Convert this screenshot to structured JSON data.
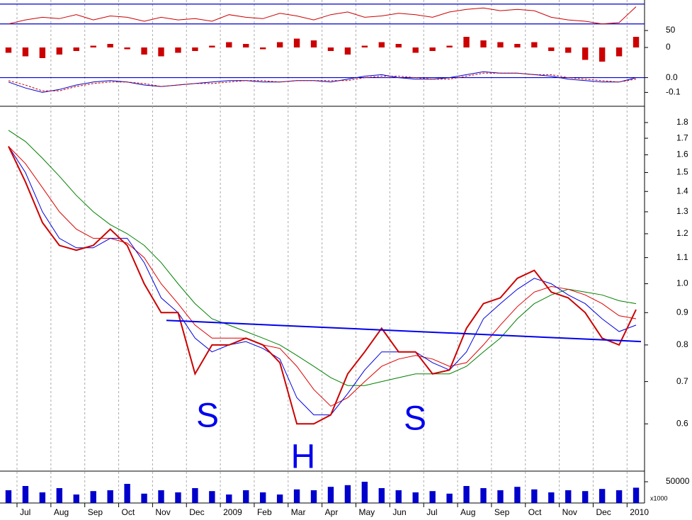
{
  "time_axis": {
    "labels": [
      "Jul",
      "Aug",
      "Sep",
      "Oct",
      "Nov",
      "Dec",
      "2009",
      "Feb",
      "Mar",
      "Apr",
      "May",
      "Jun",
      "Jul",
      "Aug",
      "Sep",
      "Oct",
      "Nov",
      "Dec",
      "2010"
    ]
  },
  "chart_data": [
    {
      "type": "line",
      "ylim": [
        42,
        72
      ],
      "yticks": [
        50
      ],
      "hlines": [
        70,
        55
      ],
      "series": [
        {
          "color": "#cc0000",
          "values": [
            55,
            58,
            60,
            59,
            62,
            58,
            61,
            60,
            57,
            60,
            58,
            59,
            57,
            62,
            60,
            59,
            63,
            61,
            58,
            62,
            64,
            60,
            61,
            63,
            62,
            60,
            64,
            66,
            67,
            65,
            66,
            65,
            60,
            58,
            57,
            55,
            56,
            68
          ]
        }
      ]
    },
    {
      "type": "bar",
      "ylim": [
        -1,
        1
      ],
      "yticks": [
        0
      ],
      "color": "#cc0000",
      "values": [
        -0.3,
        -0.5,
        -0.6,
        -0.4,
        -0.2,
        0.1,
        0.2,
        -0.1,
        -0.4,
        -0.5,
        -0.3,
        -0.2,
        0.1,
        0.3,
        0.2,
        -0.1,
        0.3,
        0.5,
        0.4,
        -0.2,
        -0.4,
        0.1,
        0.3,
        0.2,
        -0.3,
        -0.2,
        0.1,
        0.6,
        0.4,
        0.3,
        0.2,
        0.3,
        -0.2,
        -0.3,
        -0.7,
        -0.8,
        -0.5,
        0.6
      ]
    },
    {
      "type": "line",
      "ylim": [
        -0.17,
        0.07
      ],
      "yticks": [
        {
          "value": 0,
          "label": "0.0"
        },
        -0.1
      ],
      "hlines": [
        0
      ],
      "series": [
        {
          "color": "#0000cc",
          "values": [
            -0.03,
            -0.07,
            -0.1,
            -0.08,
            -0.05,
            -0.03,
            -0.02,
            -0.03,
            -0.05,
            -0.06,
            -0.05,
            -0.04,
            -0.03,
            -0.02,
            -0.02,
            -0.03,
            -0.03,
            -0.02,
            -0.02,
            -0.03,
            -0.01,
            0.01,
            0.02,
            0.0,
            -0.01,
            -0.01,
            0.0,
            0.02,
            0.04,
            0.03,
            0.03,
            0.02,
            0.01,
            -0.01,
            -0.02,
            -0.03,
            -0.03,
            0.0
          ]
        },
        {
          "color": "#cc0000",
          "dash": true,
          "values": [
            -0.02,
            -0.05,
            -0.09,
            -0.09,
            -0.06,
            -0.04,
            -0.03,
            -0.03,
            -0.04,
            -0.06,
            -0.05,
            -0.04,
            -0.04,
            -0.03,
            -0.02,
            -0.02,
            -0.03,
            -0.02,
            -0.02,
            -0.02,
            -0.02,
            0.0,
            0.01,
            0.01,
            0.0,
            -0.01,
            -0.01,
            0.01,
            0.03,
            0.03,
            0.03,
            0.02,
            0.02,
            0.0,
            -0.01,
            -0.02,
            -0.03,
            -0.01
          ]
        }
      ]
    },
    {
      "type": "line",
      "log": true,
      "ylim": [
        0.505,
        1.91
      ],
      "yticks": [
        0.6,
        0.7,
        0.8,
        0.9,
        {
          "value": 1,
          "label": "1.0"
        },
        1.1,
        1.2,
        1.3,
        1.4,
        1.5,
        1.6,
        1.7,
        1.8
      ],
      "series": [
        {
          "color": "#008000",
          "values": [
            1.75,
            1.68,
            1.58,
            1.48,
            1.38,
            1.3,
            1.24,
            1.2,
            1.15,
            1.08,
            1.0,
            0.93,
            0.88,
            0.86,
            0.84,
            0.82,
            0.8,
            0.77,
            0.74,
            0.71,
            0.69,
            0.69,
            0.7,
            0.71,
            0.72,
            0.72,
            0.72,
            0.74,
            0.78,
            0.82,
            0.88,
            0.93,
            0.96,
            0.98,
            0.97,
            0.96,
            0.94,
            0.93
          ]
        },
        {
          "color": "#dd0000",
          "values": [
            1.65,
            1.55,
            1.42,
            1.3,
            1.22,
            1.18,
            1.18,
            1.16,
            1.1,
            1.0,
            0.93,
            0.86,
            0.82,
            0.82,
            0.82,
            0.8,
            0.79,
            0.74,
            0.68,
            0.64,
            0.66,
            0.7,
            0.74,
            0.76,
            0.77,
            0.76,
            0.74,
            0.75,
            0.8,
            0.86,
            0.92,
            0.97,
            0.99,
            0.98,
            0.96,
            0.93,
            0.89,
            0.88
          ]
        },
        {
          "color": "#0000dd",
          "values": [
            1.65,
            1.5,
            1.3,
            1.18,
            1.14,
            1.14,
            1.18,
            1.18,
            1.08,
            0.95,
            0.9,
            0.82,
            0.78,
            0.8,
            0.81,
            0.79,
            0.76,
            0.66,
            0.62,
            0.62,
            0.67,
            0.73,
            0.78,
            0.78,
            0.78,
            0.75,
            0.73,
            0.78,
            0.88,
            0.93,
            0.98,
            1.02,
            1.0,
            0.96,
            0.93,
            0.88,
            0.84,
            0.86
          ]
        },
        {
          "color": "#cc0000",
          "width": 2,
          "values": [
            1.65,
            1.45,
            1.25,
            1.15,
            1.13,
            1.15,
            1.22,
            1.15,
            1.0,
            0.9,
            0.9,
            0.72,
            0.8,
            0.8,
            0.82,
            0.8,
            0.75,
            0.6,
            0.6,
            0.62,
            0.72,
            0.78,
            0.85,
            0.78,
            0.78,
            0.72,
            0.73,
            0.85,
            0.93,
            0.95,
            1.02,
            1.05,
            0.97,
            0.95,
            0.9,
            0.82,
            0.8,
            0.91
          ]
        }
      ],
      "trendline": [
        0.875,
        0.81
      ],
      "annotations": [
        "S",
        "H",
        "S"
      ]
    },
    {
      "type": "bar",
      "ylim": [
        0,
        70000
      ],
      "yticks": [
        50000
      ],
      "unit_label": "x1000",
      "color": "#0000cc",
      "values": [
        30000,
        40000,
        25000,
        35000,
        20000,
        28000,
        30000,
        45000,
        22000,
        30000,
        25000,
        35000,
        28000,
        20000,
        30000,
        25000,
        20000,
        32000,
        30000,
        38000,
        42000,
        50000,
        35000,
        30000,
        25000,
        28000,
        22000,
        40000,
        35000,
        30000,
        38000,
        32000,
        25000,
        30000,
        28000,
        33000,
        30000,
        36000
      ]
    }
  ]
}
